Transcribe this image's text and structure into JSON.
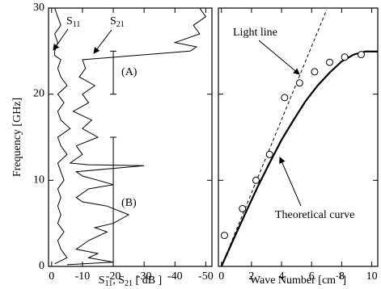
{
  "chart_data": [
    {
      "type": "line",
      "xlabel": "S11, S21 [ dB ]",
      "ylabel": "Frequency [GHz]",
      "xlim": [
        1,
        -52
      ],
      "xticks": [
        0,
        -10,
        -20,
        -30,
        -40,
        -50
      ],
      "ylim": [
        0,
        30
      ],
      "yticks": [
        0,
        10,
        20,
        30
      ],
      "series": [
        {
          "name": "S11",
          "color": "#000000",
          "x": [
            -1,
            -5,
            -3,
            -2,
            -4,
            -2,
            -3,
            -2,
            -3,
            -2,
            -4,
            -3,
            -2,
            -5,
            -3,
            -2,
            -6,
            -3,
            -2,
            -4,
            -2,
            -5,
            -3,
            -2,
            -3,
            -1,
            -1,
            -2,
            -1,
            -3,
            -2,
            -1
          ],
          "values": [
            0.3,
            1,
            2,
            3,
            4,
            5,
            6,
            7,
            8,
            9,
            10,
            11,
            12,
            13,
            14,
            15,
            16,
            17,
            18,
            19,
            20,
            21,
            22,
            23,
            24,
            24.5,
            25,
            26,
            27,
            28,
            29,
            30
          ]
        },
        {
          "name": "S21",
          "color": "#000000",
          "x": [
            -5,
            -20,
            -12,
            -15,
            -8,
            -12,
            -18,
            -14,
            -20,
            -25,
            -18,
            -10,
            -8,
            -12,
            -20,
            -15,
            -10,
            -8,
            -30,
            -12,
            -6,
            -10,
            -8,
            -15,
            -10,
            -13,
            -7,
            -12,
            -10,
            -14,
            -9,
            -11,
            -10,
            -27,
            -45,
            -47,
            -40,
            -48,
            -46,
            -50,
            -48
          ],
          "values": [
            0.2,
            0.5,
            1,
            1.5,
            2,
            3,
            4,
            4.5,
            5,
            6,
            7,
            7.5,
            8,
            9,
            9.5,
            10,
            10.5,
            11,
            11.7,
            11.8,
            12,
            13,
            14,
            15,
            16,
            17,
            18,
            19,
            20,
            21,
            22,
            23,
            24,
            24.5,
            25,
            25.5,
            26,
            27,
            28,
            29,
            30
          ]
        }
      ],
      "annotations": [
        {
          "text": "(A)",
          "range": [
            20,
            25
          ]
        },
        {
          "text": "(B)",
          "range": [
            0,
            15
          ]
        }
      ]
    },
    {
      "type": "line",
      "xlabel": "Wave Number [cm-1]",
      "xlim": [
        -0.2,
        10.4
      ],
      "xticks": [
        0,
        2,
        4,
        6,
        8,
        10
      ],
      "ylim": [
        0,
        30
      ],
      "series": [
        {
          "name": "Light line",
          "color": "#000000",
          "dash": true,
          "x": [
            0,
            7
          ],
          "values": [
            0,
            29.8
          ]
        },
        {
          "name": "Theoretical curve",
          "color": "#000000",
          "dash": false,
          "x": [
            0,
            0.8,
            1.6,
            2.4,
            3.2,
            4,
            4.8,
            5.6,
            6.4,
            7.2,
            8,
            8.8,
            9.6,
            10.4
          ],
          "values": [
            0,
            3.13,
            6.2,
            9.2,
            12.0,
            14.7,
            17.0,
            19.2,
            21.0,
            22.5,
            23.8,
            24.6,
            24.97,
            24.95
          ]
        }
      ],
      "points": {
        "x": [
          0.2,
          1.4,
          2.3,
          3.2,
          4.2,
          5.2,
          6.2,
          7.2,
          8.2,
          9.3
        ],
        "values": [
          3.6,
          6.7,
          10,
          13,
          19.6,
          21.3,
          22.6,
          23.7,
          24.3,
          24.6
        ]
      }
    }
  ]
}
